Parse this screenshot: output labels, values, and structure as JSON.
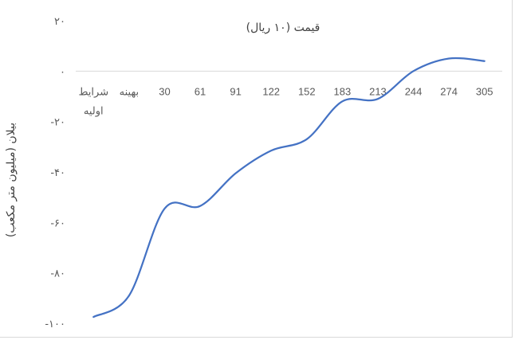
{
  "chart_data": {
    "type": "line",
    "xlabel": "قیمت (۱۰ ریال)",
    "ylabel": "بیلان (میلیون متر مکعب)",
    "categories": [
      "شرایط اولیه",
      "بهینه",
      "30",
      "61",
      "91",
      "122",
      "152",
      "183",
      "213",
      "244",
      "274",
      "305"
    ],
    "y_ticks": [
      {
        "value": 20,
        "label": "۲۰"
      },
      {
        "value": 0,
        "label": "۰"
      },
      {
        "value": -20,
        "label": "-۲۰"
      },
      {
        "value": -40,
        "label": "-۴۰"
      },
      {
        "value": -60,
        "label": "-۶۰"
      },
      {
        "value": -80,
        "label": "-۸۰"
      },
      {
        "value": -100,
        "label": "-۱۰۰"
      }
    ],
    "ylim": [
      -100,
      20
    ],
    "x_axis_at": 0,
    "grid": false,
    "series": [
      {
        "values": [
          -97.5,
          -89,
          -54.5,
          -53.5,
          -40.5,
          -31.5,
          -27,
          -12,
          -11,
          0,
          5,
          4
        ]
      }
    ],
    "line_color": "#4472c4"
  }
}
